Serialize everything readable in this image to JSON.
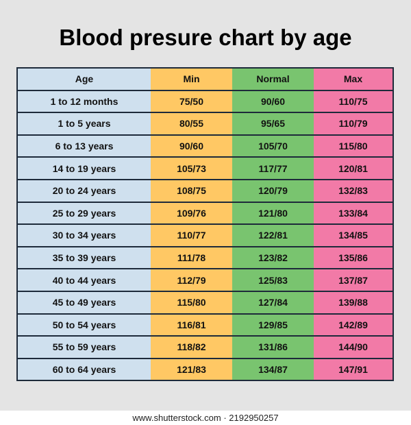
{
  "title": "Blood presure chart by age",
  "watermark": "shutterstock",
  "footer": "www.shutterstock.com · 2192950257",
  "colors": {
    "age": "#cfe0ee",
    "min": "#ffc864",
    "normal": "#79c46f",
    "max": "#f27aa7",
    "border": "#1d2a3a",
    "background": "#e4e4e4"
  },
  "chart_data": {
    "type": "table",
    "title": "Blood presure chart by age",
    "columns": [
      "Age",
      "Min",
      "Normal",
      "Max"
    ],
    "rows": [
      [
        "1 to 12 months",
        "75/50",
        "90/60",
        "110/75"
      ],
      [
        "1 to 5 years",
        "80/55",
        "95/65",
        "110/79"
      ],
      [
        "6 to 13 years",
        "90/60",
        "105/70",
        "115/80"
      ],
      [
        "14 to 19 years",
        "105/73",
        "117/77",
        "120/81"
      ],
      [
        "20 to 24 years",
        "108/75",
        "120/79",
        "132/83"
      ],
      [
        "25 to 29 years",
        "109/76",
        "121/80",
        "133/84"
      ],
      [
        "30 to 34 years",
        "110/77",
        "122/81",
        "134/85"
      ],
      [
        "35 to 39 years",
        "111/78",
        "123/82",
        "135/86"
      ],
      [
        "40 to 44 years",
        "112/79",
        "125/83",
        "137/87"
      ],
      [
        "45 to 49 years",
        "115/80",
        "127/84",
        "139/88"
      ],
      [
        "50 to 54 years",
        "116/81",
        "129/85",
        "142/89"
      ],
      [
        "55 to 59 years",
        "118/82",
        "131/86",
        "144/90"
      ],
      [
        "60 to 64 years",
        "121/83",
        "134/87",
        "147/91"
      ]
    ]
  }
}
